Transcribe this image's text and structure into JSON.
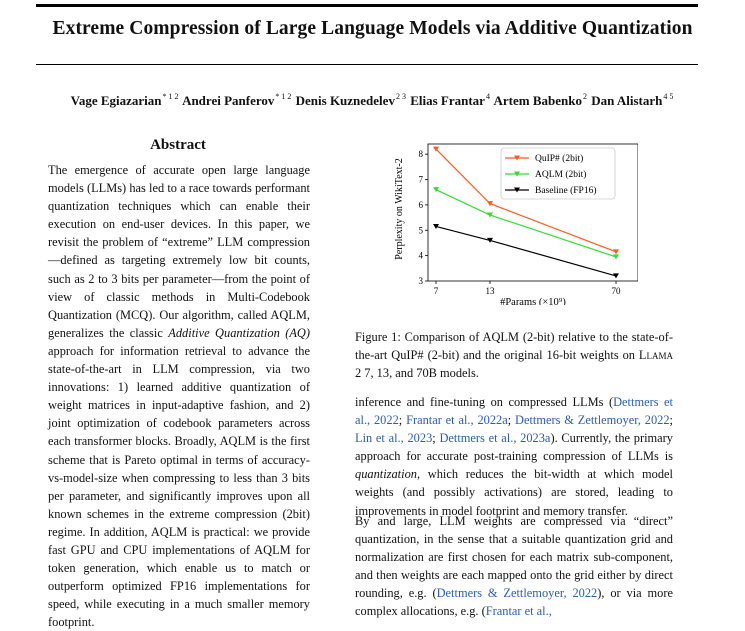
{
  "title": "Extreme Compression of Large Language Models via Additive Quantization",
  "authors": [
    {
      "name": "Vage Egiazarian",
      "sup": "* 1 2"
    },
    {
      "name": "Andrei Panferov",
      "sup": "* 1 2"
    },
    {
      "name": "Denis Kuznedelev",
      "sup": "2 3"
    },
    {
      "name": "Elias Frantar",
      "sup": "4"
    },
    {
      "name": "Artem Babenko",
      "sup": "2"
    },
    {
      "name": "Dan Alistarh",
      "sup": "4 5"
    }
  ],
  "abstract": {
    "heading": "Abstract",
    "part1": "The emergence of accurate open large language models (LLMs) has led to a race towards performant quantization techniques which can enable their execution on end-user devices. In this paper, we revisit the problem of “extreme” LLM compression—defined as targeting extremely low bit counts, such as 2 to 3 bits per parameter—from the point of view of classic methods in Multi-Codebook Quantization (MCQ). Our algorithm, called AQLM, generalizes the classic ",
    "italic": "Additive Quantization (AQ)",
    "part2": " approach for information retrieval to advance the state-of-the-art in LLM compression, via two innovations: 1) learned additive quantization of weight matrices in input-adaptive fashion, and 2) joint optimization of codebook parameters across each transformer blocks. Broadly, AQLM is the first scheme that is Pareto optimal in terms of accuracy-vs-model-size when compressing to less than 3 bits per parameter, and significantly improves upon all known schemes in the extreme compression (2bit) regime. In addition, AQLM is practical: we provide fast GPU and CPU implementations of AQLM for token generation, which enable us to match or outperform optimized FP16 implementations for speed, while executing in a much smaller memory footprint."
  },
  "caption": {
    "text": "Figure 1: Comparison of AQLM (2-bit) relative to the state-of-the-art QuIP# (2-bit) and the original 16-bit weights on ",
    "model": "Llama",
    "tail": " 2 7, 13, and 70B models."
  },
  "para1": {
    "a": "inference and fine-tuning on compressed LLMs (",
    "c1": "Dettmers et al., 2022",
    "s1": "; ",
    "c2": "Frantar et al., 2022a",
    "s2": "; ",
    "c3": "Dettmers & Zettlemoyer, 2022",
    "s3": "; ",
    "c4": "Lin et al., 2023",
    "s4": "; ",
    "c5": "Dettmers et al., 2023a",
    "b": "). Currently, the primary approach for accurate post-training compression of LLMs is ",
    "it": "quantization",
    "c": ", which reduces the bit-width at which model weights (and possibly activations) are stored, leading to improvements in model footprint and memory transfer."
  },
  "para2": {
    "a": "By and large, LLM weights are compressed via “direct” quantization, in the sense that a suitable quantization grid and normalization are first chosen for each matrix sub-component, and then weights are each mapped onto the grid either by direct rounding, e.g. (",
    "c1": "Dettmers & Zettlemoyer, 2022",
    "b": "), or via more complex allocations, e.g. (",
    "c2": "Frantar et al.,"
  },
  "chart_data": {
    "type": "line",
    "x": [
      7,
      13,
      70
    ],
    "xticks": [
      "7",
      "13",
      "70"
    ],
    "xlabel": "#Params (×10⁹)",
    "ylabel": "Perplexity on WikiText-2",
    "yticks": [
      "3",
      "4",
      "5",
      "6",
      "7",
      "8"
    ],
    "ylim": [
      3,
      8.4
    ],
    "series": [
      {
        "name": "QuIP# (2bit)",
        "values": [
          8.2,
          6.05,
          4.15
        ],
        "color": "#ff5a1f",
        "marker": "triangle-down"
      },
      {
        "name": "AQLM (2bit)",
        "values": [
          6.6,
          5.6,
          3.95
        ],
        "color": "#33dd33",
        "marker": "triangle-down"
      },
      {
        "name": "Baseline (FP16)",
        "values": [
          5.15,
          4.6,
          3.2
        ],
        "color": "#000000",
        "marker": "triangle-down"
      }
    ],
    "legend": "top-right"
  }
}
